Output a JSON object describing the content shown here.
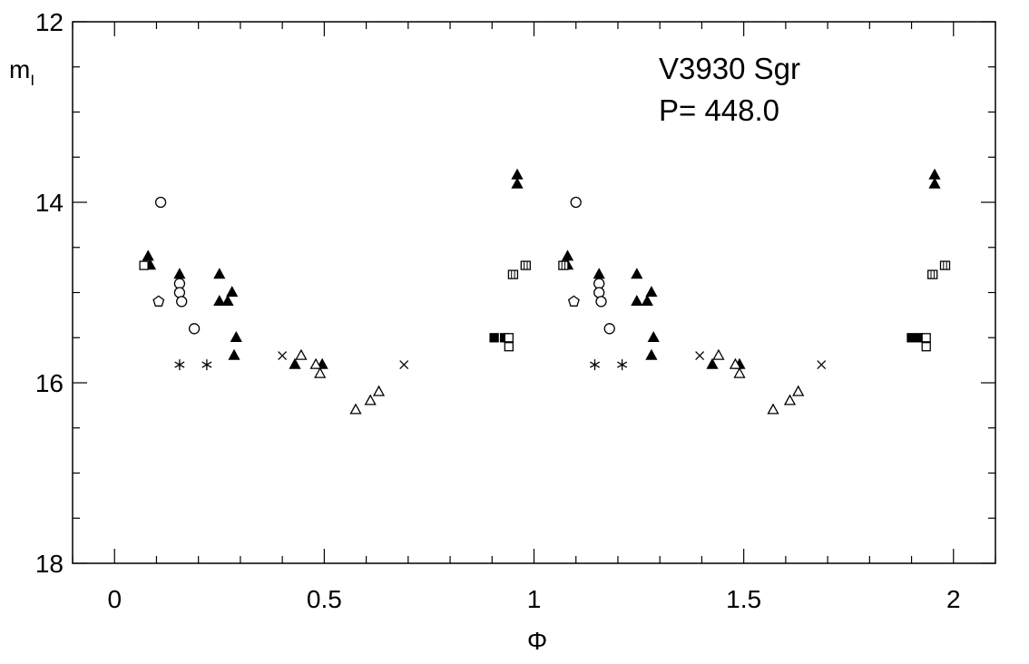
{
  "chart_data": {
    "type": "scatter",
    "title": "V3930 Sgr",
    "subtitle": "P= 448.0",
    "xlabel": "Φ",
    "ylabel_main": "m",
    "ylabel_sub": "I",
    "xlim": [
      -0.1,
      2.1
    ],
    "ylim": [
      18,
      12
    ],
    "y_inverted": true,
    "grid": false,
    "x_ticks": [
      {
        "value": 0,
        "label": "0"
      },
      {
        "value": 0.5,
        "label": "0.5"
      },
      {
        "value": 1,
        "label": "1"
      },
      {
        "value": 1.5,
        "label": "1.5"
      },
      {
        "value": 2,
        "label": "2"
      }
    ],
    "y_ticks": [
      {
        "value": 12,
        "label": "12"
      },
      {
        "value": 14,
        "label": "14"
      },
      {
        "value": 16,
        "label": "16"
      },
      {
        "value": 18,
        "label": "18"
      }
    ],
    "series": [
      {
        "marker": "filled-triangle",
        "points": [
          [
            0.08,
            14.6
          ],
          [
            0.085,
            14.7
          ],
          [
            0.155,
            14.8
          ],
          [
            0.25,
            14.8
          ],
          [
            0.25,
            15.1
          ],
          [
            0.27,
            15.1
          ],
          [
            0.28,
            15.0
          ],
          [
            0.29,
            15.5
          ],
          [
            0.285,
            15.7
          ],
          [
            0.43,
            15.8
          ],
          [
            0.495,
            15.8
          ],
          [
            0.96,
            13.7
          ],
          [
            0.96,
            13.8
          ],
          [
            1.08,
            14.6
          ],
          [
            1.08,
            14.7
          ],
          [
            1.155,
            14.8
          ],
          [
            1.245,
            14.8
          ],
          [
            1.245,
            15.1
          ],
          [
            1.27,
            15.1
          ],
          [
            1.28,
            15.0
          ],
          [
            1.285,
            15.5
          ],
          [
            1.28,
            15.7
          ],
          [
            1.425,
            15.8
          ],
          [
            1.49,
            15.8
          ],
          [
            1.955,
            13.7
          ],
          [
            1.955,
            13.8
          ]
        ]
      },
      {
        "marker": "open-circle",
        "points": [
          [
            0.11,
            14.0
          ],
          [
            0.155,
            14.9
          ],
          [
            0.155,
            15.0
          ],
          [
            0.16,
            15.1
          ],
          [
            0.19,
            15.4
          ],
          [
            1.1,
            14.0
          ],
          [
            1.155,
            14.9
          ],
          [
            1.155,
            15.0
          ],
          [
            1.16,
            15.1
          ],
          [
            1.18,
            15.4
          ]
        ]
      },
      {
        "marker": "open-pentagon",
        "points": [
          [
            0.105,
            15.1
          ],
          [
            1.095,
            15.1
          ]
        ]
      },
      {
        "marker": "asterisk",
        "points": [
          [
            0.155,
            15.8
          ],
          [
            0.22,
            15.8
          ],
          [
            1.145,
            15.8
          ],
          [
            1.21,
            15.8
          ]
        ]
      },
      {
        "marker": "cross",
        "points": [
          [
            0.4,
            15.7
          ],
          [
            0.69,
            15.8
          ],
          [
            1.395,
            15.7
          ],
          [
            1.685,
            15.8
          ]
        ]
      },
      {
        "marker": "open-triangle",
        "points": [
          [
            0.445,
            15.7
          ],
          [
            0.48,
            15.8
          ],
          [
            0.49,
            15.9
          ],
          [
            0.575,
            16.3
          ],
          [
            0.61,
            16.2
          ],
          [
            0.63,
            16.1
          ],
          [
            1.44,
            15.7
          ],
          [
            1.48,
            15.8
          ],
          [
            1.49,
            15.9
          ],
          [
            1.57,
            16.3
          ],
          [
            1.61,
            16.2
          ],
          [
            1.63,
            16.1
          ]
        ]
      },
      {
        "marker": "filled-square",
        "points": [
          [
            0.905,
            15.5
          ],
          [
            0.93,
            15.5
          ],
          [
            1.9,
            15.5
          ],
          [
            1.92,
            15.5
          ]
        ]
      },
      {
        "marker": "open-square",
        "points": [
          [
            0.07,
            14.7
          ],
          [
            0.94,
            15.5
          ],
          [
            0.94,
            15.6
          ],
          [
            1.935,
            15.5
          ],
          [
            1.935,
            15.6
          ]
        ]
      },
      {
        "marker": "barred-square",
        "points": [
          [
            0.95,
            14.8
          ],
          [
            0.98,
            14.7
          ],
          [
            1.07,
            14.7
          ],
          [
            1.95,
            14.8
          ],
          [
            1.98,
            14.7
          ]
        ]
      }
    ]
  }
}
